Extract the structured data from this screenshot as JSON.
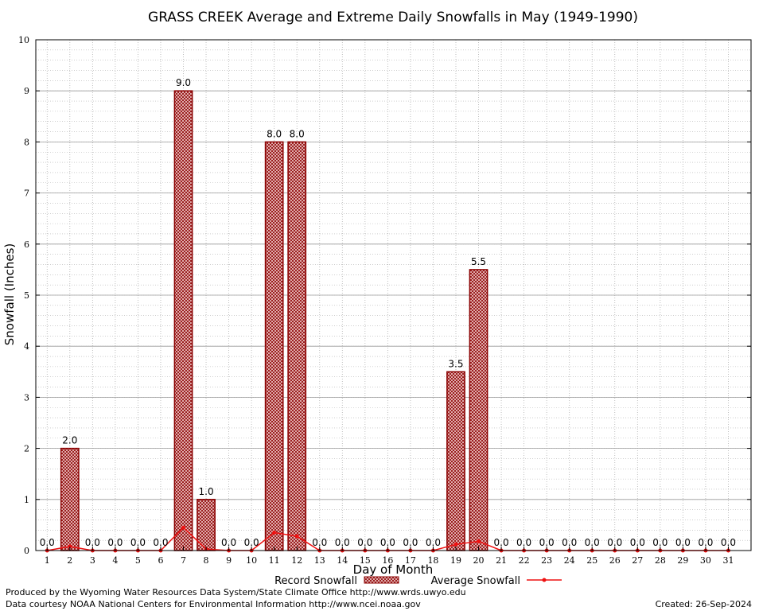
{
  "chart_data": {
    "type": "bar",
    "title": "GRASS CREEK Average and Extreme Daily Snowfalls in May (1949-1990)",
    "xlabel": "Day of Month",
    "ylabel": "Snowfall (Inches)",
    "categories": [
      "1",
      "2",
      "3",
      "4",
      "5",
      "6",
      "7",
      "8",
      "9",
      "10",
      "11",
      "12",
      "13",
      "14",
      "15",
      "16",
      "17",
      "18",
      "19",
      "20",
      "21",
      "22",
      "23",
      "24",
      "25",
      "26",
      "27",
      "28",
      "29",
      "30",
      "31"
    ],
    "ylim": [
      0,
      10
    ],
    "yticks": [
      "0",
      "1",
      "2",
      "3",
      "4",
      "5",
      "6",
      "7",
      "8",
      "9",
      "10"
    ],
    "grid": true,
    "legend_position": "bottom",
    "series": [
      {
        "name": "Record Snowfall",
        "type": "bar",
        "values": [
          0.0,
          2.0,
          0.0,
          0.0,
          0.0,
          0.0,
          9.0,
          1.0,
          0.0,
          0.0,
          8.0,
          8.0,
          0.0,
          0.0,
          0.0,
          0.0,
          0.0,
          0.0,
          3.5,
          5.5,
          0.0,
          0.0,
          0.0,
          0.0,
          0.0,
          0.0,
          0.0,
          0.0,
          0.0,
          0.0,
          0.0
        ],
        "labels": [
          "0.0",
          "2.0",
          "0.0",
          "0.0",
          "0.0",
          "0.0",
          "9.0",
          "1.0",
          "0.0",
          "0.0",
          "8.0",
          "8.0",
          "0.0",
          "0.0",
          "0.0",
          "0.0",
          "0.0",
          "0.0",
          "3.5",
          "5.5",
          "0.0",
          "0.0",
          "0.0",
          "0.0",
          "0.0",
          "0.0",
          "0.0",
          "0.0",
          "0.0",
          "0.0",
          "0.0"
        ],
        "color": "#8b0000"
      },
      {
        "name": "Average Snowfall",
        "type": "line",
        "values": [
          0.0,
          0.08,
          0.0,
          0.0,
          0.0,
          0.0,
          0.45,
          0.03,
          0.0,
          0.0,
          0.35,
          0.28,
          0.0,
          0.0,
          0.0,
          0.0,
          0.0,
          0.0,
          0.12,
          0.18,
          0.0,
          0.0,
          0.0,
          0.0,
          0.0,
          0.0,
          0.0,
          0.0,
          0.0,
          0.0,
          0.0
        ],
        "color": "#ee1111"
      }
    ]
  },
  "footer": {
    "credit_line1": "Produced by the Wyoming Water Resources Data System/State Climate Office http://www.wrds.uwyo.edu",
    "credit_line2": "Data courtesy NOAA National Centers for Environmental Information http://www.ncei.noaa.gov",
    "created": "Created:  26-Sep-2024"
  }
}
